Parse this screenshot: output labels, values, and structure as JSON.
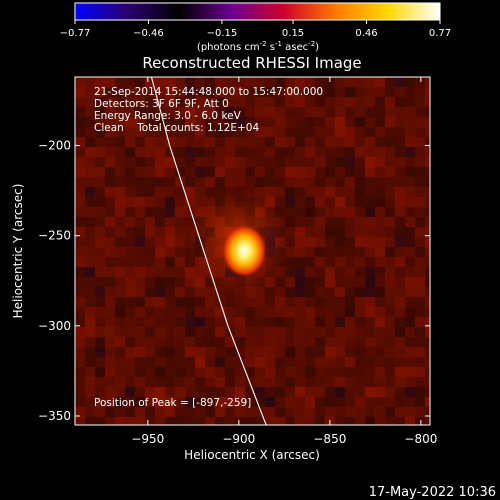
{
  "colorbar": {
    "ticks": [
      "-0.77",
      "-0.46",
      "-0.15",
      "0.15",
      "0.46",
      "0.77"
    ],
    "min": -0.77,
    "max": 0.77,
    "colormap": [
      "#0000ff",
      "#2a0070",
      "#000000",
      "#6a0090",
      "#d0002a",
      "#ff7a00",
      "#ffd800",
      "#ffffff"
    ],
    "unit_main": "(photons cm",
    "unit_sup1": "-2",
    "unit_mid": " s",
    "unit_sup2": "-1",
    "unit_end": " asec",
    "unit_sup3": "-2",
    "unit_close": ")"
  },
  "chart_data": {
    "type": "heatmap",
    "title": "Reconstructed RHESSI Image",
    "xlabel": "Heliocentric X (arcsec)",
    "ylabel": "Heliocentric Y (arcsec)",
    "xlim": [
      -990,
      -795
    ],
    "ylim": [
      -355,
      -162
    ],
    "xticks": [
      {
        "value": -950,
        "label": "−950"
      },
      {
        "value": -900,
        "label": "−900"
      },
      {
        "value": -850,
        "label": "−850"
      },
      {
        "value": -800,
        "label": "−800"
      }
    ],
    "yticks": [
      {
        "value": -200,
        "label": "−200"
      },
      {
        "value": -250,
        "label": "−250"
      },
      {
        "value": -300,
        "label": "−300"
      },
      {
        "value": -350,
        "label": "−350"
      }
    ],
    "peak": {
      "x": -897,
      "y": -259,
      "value": 0.77
    },
    "limb_points": [
      [
        -948,
        -162
      ],
      [
        -938,
        -200
      ],
      [
        -922,
        -250
      ],
      [
        -906,
        -300
      ],
      [
        -885,
        -355
      ]
    ],
    "info_lines": [
      "21-Sep-2014 15:44:48.000 to 15:47:00.000",
      "Detectors: 3F 6F 9F, Att 0",
      "Energy Range: 3.0 - 6.0 keV",
      "Clean    Total counts: 1.12E+04"
    ],
    "peak_label": "Position of Peak = [-897,-259]"
  },
  "timestamp": "17-May-2022 10:36"
}
